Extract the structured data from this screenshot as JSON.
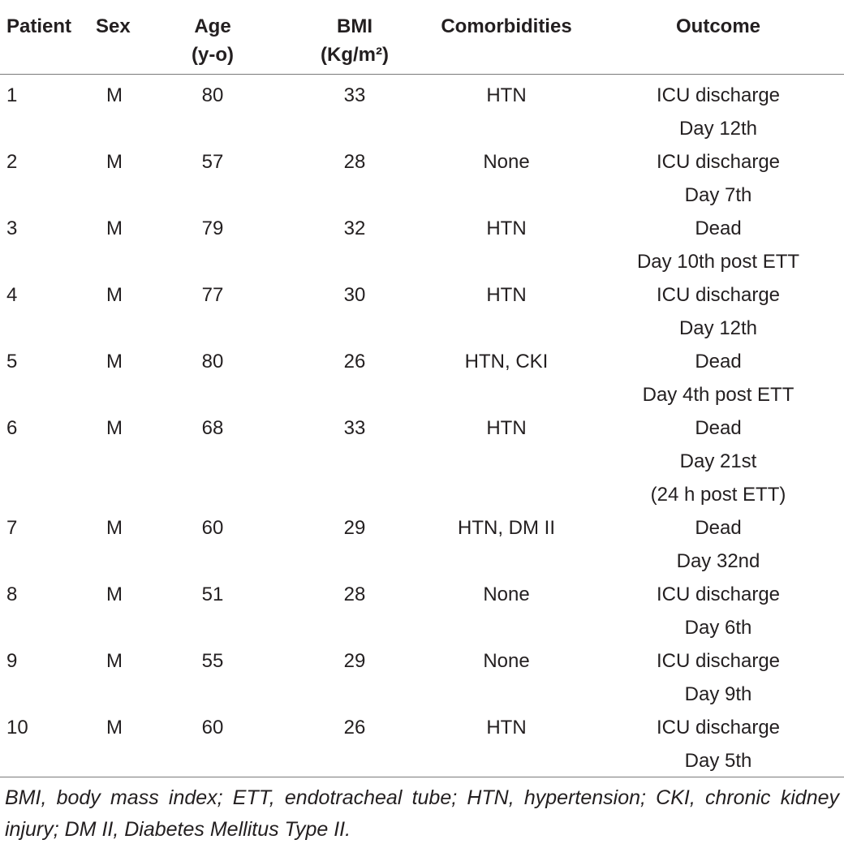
{
  "table": {
    "columns": [
      [
        "Patient"
      ],
      [
        "Sex"
      ],
      [
        "Age",
        "(y-o)"
      ],
      [
        "BMI",
        "(Kg/m²)"
      ],
      [
        "Comorbidities"
      ],
      [
        "Outcome"
      ]
    ],
    "rows": [
      [
        1,
        "M",
        80,
        33,
        "HTN",
        [
          "ICU discharge",
          "Day 12th"
        ]
      ],
      [
        2,
        "M",
        57,
        28,
        "None",
        [
          "ICU discharge",
          "Day 7th"
        ]
      ],
      [
        3,
        "M",
        79,
        32,
        "HTN",
        [
          "Dead",
          "Day 10th post ETT"
        ]
      ],
      [
        4,
        "M",
        77,
        30,
        "HTN",
        [
          "ICU discharge",
          "Day 12th"
        ]
      ],
      [
        5,
        "M",
        80,
        26,
        "HTN, CKI",
        [
          "Dead",
          "Day 4th post ETT"
        ]
      ],
      [
        6,
        "M",
        68,
        33,
        "HTN",
        [
          "Dead",
          "Day 21st",
          "(24 h post ETT)"
        ]
      ],
      [
        7,
        "M",
        60,
        29,
        "HTN, DM II",
        [
          "Dead",
          "Day 32nd"
        ]
      ],
      [
        8,
        "M",
        51,
        28,
        "None",
        [
          "ICU discharge",
          "Day 6th"
        ]
      ],
      [
        9,
        "M",
        55,
        29,
        "None",
        [
          "ICU discharge",
          "Day 9th"
        ]
      ],
      [
        10,
        "M",
        60,
        26,
        "HTN",
        [
          "ICU discharge",
          "Day 5th"
        ]
      ]
    ]
  },
  "footnote": "BMI, body mass index; ETT, endotracheal tube; HTN, hypertension; CKI, chronic kidney injury; DM II, Diabetes Mellitus Type II."
}
